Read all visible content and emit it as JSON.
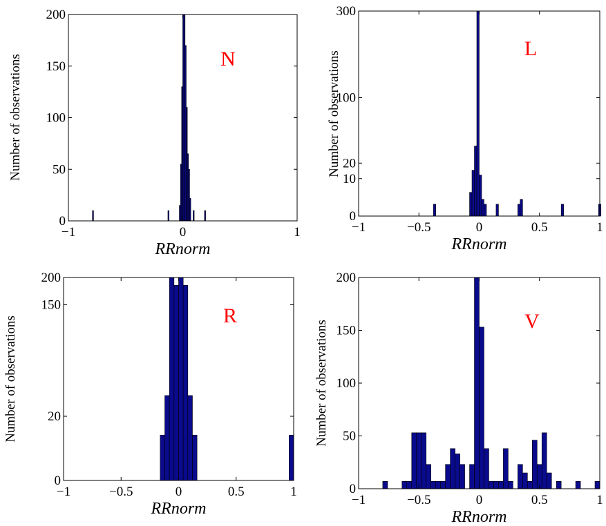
{
  "chart_data": [
    {
      "type": "bar",
      "panel_label": "N",
      "xlabel": "RRnorm",
      "ylabel": "Number of observations",
      "xlim": [
        -1,
        1
      ],
      "xticks": [
        {
          "v": -1,
          "t": "−1"
        },
        {
          "v": 0,
          "t": "0"
        },
        {
          "v": 1,
          "t": "1"
        }
      ],
      "ylim": [
        0,
        200
      ],
      "yscale": "linear",
      "yticks": [
        {
          "v": 0,
          "t": "0"
        },
        {
          "v": 50,
          "t": "50"
        },
        {
          "v": 100,
          "t": "100"
        },
        {
          "v": 150,
          "t": "150"
        },
        {
          "v": 200,
          "t": "200"
        }
      ],
      "bin_width": 0.01,
      "bins": [
        {
          "x": -0.79,
          "y": 10
        },
        {
          "x": -0.13,
          "y": 10
        },
        {
          "x": -0.03,
          "y": 15
        },
        {
          "x": -0.02,
          "y": 55
        },
        {
          "x": -0.01,
          "y": 130
        },
        {
          "x": 0.0,
          "y": 200
        },
        {
          "x": 0.01,
          "y": 200
        },
        {
          "x": 0.02,
          "y": 170
        },
        {
          "x": 0.03,
          "y": 110
        },
        {
          "x": 0.04,
          "y": 65
        },
        {
          "x": 0.05,
          "y": 50
        },
        {
          "x": 0.06,
          "y": 22
        },
        {
          "x": 0.09,
          "y": 10
        },
        {
          "x": 0.19,
          "y": 10
        }
      ]
    },
    {
      "type": "bar",
      "panel_label": "L",
      "xlabel": "RRnorm",
      "ylabel": "Number of observations",
      "xlim": [
        -1,
        1
      ],
      "xticks": [
        {
          "v": -1,
          "t": "−1"
        },
        {
          "v": -0.5,
          "t": "−0.5"
        },
        {
          "v": 0,
          "t": "0"
        },
        {
          "v": 0.5,
          "t": "0.5"
        },
        {
          "v": 1,
          "t": "1"
        }
      ],
      "ylim": [
        0,
        300
      ],
      "yscale": "sqrt",
      "yticks": [
        {
          "v": 0,
          "t": "0"
        },
        {
          "v": 10,
          "t": "10"
        },
        {
          "v": 20,
          "t": "20"
        },
        {
          "v": 100,
          "t": "100"
        },
        {
          "v": 300,
          "t": "300"
        }
      ],
      "bin_width": 0.02,
      "bins": [
        {
          "x": -0.38,
          "y": 1
        },
        {
          "x": -0.08,
          "y": 4
        },
        {
          "x": -0.06,
          "y": 15
        },
        {
          "x": -0.04,
          "y": 35
        },
        {
          "x": -0.02,
          "y": 300
        },
        {
          "x": 0.0,
          "y": 12
        },
        {
          "x": 0.02,
          "y": 2
        },
        {
          "x": 0.04,
          "y": 1
        },
        {
          "x": 0.14,
          "y": 1
        },
        {
          "x": 0.32,
          "y": 1
        },
        {
          "x": 0.34,
          "y": 2
        },
        {
          "x": 0.68,
          "y": 1
        },
        {
          "x": 0.99,
          "y": 1
        }
      ]
    },
    {
      "type": "bar",
      "panel_label": "R",
      "xlabel": "RRnorm",
      "ylabel": "Number of observations",
      "xlim": [
        -1,
        1
      ],
      "xticks": [
        {
          "v": -1,
          "t": "−1"
        },
        {
          "v": -0.5,
          "t": "−0.5"
        },
        {
          "v": 0,
          "t": "0"
        },
        {
          "v": 0.5,
          "t": "0.5"
        },
        {
          "v": 1,
          "t": "1"
        }
      ],
      "ylim": [
        0,
        200
      ],
      "yscale": "sqrt",
      "yticks": [
        {
          "v": 0,
          "t": "0"
        },
        {
          "v": 20,
          "t": "20"
        },
        {
          "v": 150,
          "t": "150"
        },
        {
          "v": 200,
          "t": "200"
        }
      ],
      "bin_width": 0.04,
      "bins": [
        {
          "x": -0.16,
          "y": 10
        },
        {
          "x": -0.12,
          "y": 35
        },
        {
          "x": -0.08,
          "y": 200
        },
        {
          "x": -0.04,
          "y": 185
        },
        {
          "x": 0.0,
          "y": 200
        },
        {
          "x": 0.04,
          "y": 185
        },
        {
          "x": 0.08,
          "y": 35
        },
        {
          "x": 0.12,
          "y": 10
        },
        {
          "x": 0.96,
          "y": 10
        }
      ]
    },
    {
      "type": "bar",
      "panel_label": "V",
      "xlabel": "RRnorm",
      "ylabel": "Number of observations",
      "xlim": [
        -1,
        1
      ],
      "xticks": [
        {
          "v": -1,
          "t": "−1"
        },
        {
          "v": -0.5,
          "t": "−0.5"
        },
        {
          "v": 0,
          "t": "0"
        },
        {
          "v": 0.5,
          "t": "0.5"
        },
        {
          "v": 1,
          "t": "1"
        }
      ],
      "ylim": [
        0,
        200
      ],
      "yscale": "linear",
      "yticks": [
        {
          "v": 0,
          "t": "0"
        },
        {
          "v": 50,
          "t": "50"
        },
        {
          "v": 100,
          "t": "100"
        },
        {
          "v": 150,
          "t": "150"
        },
        {
          "v": 200,
          "t": "200"
        }
      ],
      "bin_width": 0.04,
      "bins": [
        {
          "x": -0.8,
          "y": 7
        },
        {
          "x": -0.64,
          "y": 7
        },
        {
          "x": -0.6,
          "y": 7
        },
        {
          "x": -0.56,
          "y": 53
        },
        {
          "x": -0.52,
          "y": 53
        },
        {
          "x": -0.48,
          "y": 53
        },
        {
          "x": -0.44,
          "y": 23
        },
        {
          "x": -0.4,
          "y": 7
        },
        {
          "x": -0.36,
          "y": 7
        },
        {
          "x": -0.32,
          "y": 7
        },
        {
          "x": -0.28,
          "y": 23
        },
        {
          "x": -0.24,
          "y": 38
        },
        {
          "x": -0.2,
          "y": 33
        },
        {
          "x": -0.16,
          "y": 23
        },
        {
          "x": -0.08,
          "y": 23
        },
        {
          "x": -0.04,
          "y": 200
        },
        {
          "x": 0.0,
          "y": 153
        },
        {
          "x": 0.04,
          "y": 38
        },
        {
          "x": 0.08,
          "y": 7
        },
        {
          "x": 0.12,
          "y": 7
        },
        {
          "x": 0.16,
          "y": 7
        },
        {
          "x": 0.2,
          "y": 38
        },
        {
          "x": 0.24,
          "y": 7
        },
        {
          "x": 0.32,
          "y": 23
        },
        {
          "x": 0.36,
          "y": 15
        },
        {
          "x": 0.4,
          "y": 7
        },
        {
          "x": 0.44,
          "y": 46
        },
        {
          "x": 0.48,
          "y": 23
        },
        {
          "x": 0.52,
          "y": 53
        },
        {
          "x": 0.56,
          "y": 15
        },
        {
          "x": 0.64,
          "y": 7
        },
        {
          "x": 0.8,
          "y": 7
        },
        {
          "x": 0.96,
          "y": 7
        }
      ]
    }
  ],
  "colors": {
    "bar_fill": "#0a0a8c",
    "panel_label": "#ff0000"
  }
}
